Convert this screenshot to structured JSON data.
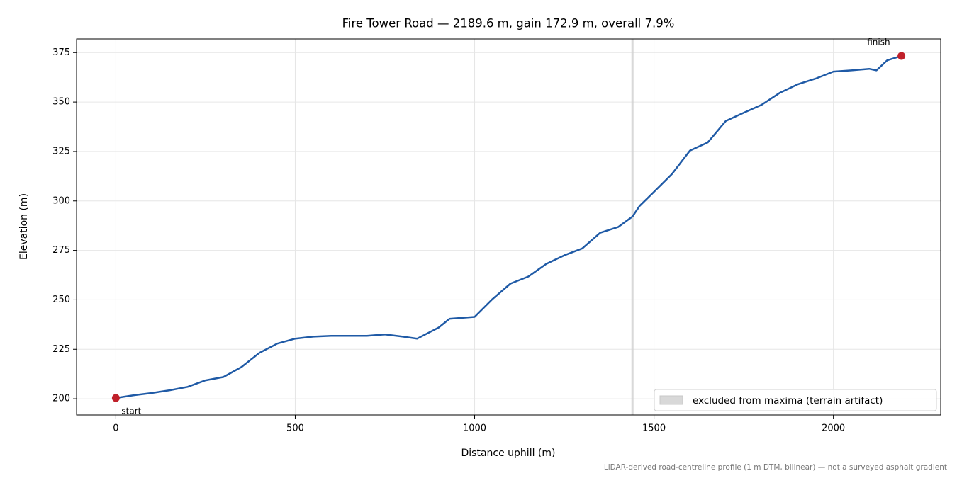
{
  "chart_data": {
    "type": "line",
    "title": "Fire Tower Road — 2189.6 m, gain 172.9 m, overall 7.9%",
    "xlabel": "Distance uphill (m)",
    "ylabel": "Elevation (m)",
    "note": "LiDAR-derived road-centreline profile (1 m DTM, bilinear) — not a surveyed asphalt gradient",
    "x": [
      0,
      50,
      100,
      150,
      200,
      250,
      300,
      350,
      400,
      450,
      500,
      550,
      600,
      700,
      750,
      800,
      840,
      900,
      930,
      1000,
      1050,
      1100,
      1150,
      1200,
      1250,
      1300,
      1350,
      1400,
      1440,
      1460,
      1500,
      1550,
      1600,
      1650,
      1700,
      1750,
      1800,
      1850,
      1900,
      1950,
      2000,
      2050,
      2100,
      2120,
      2150,
      2189.6
    ],
    "values": [
      200.4,
      201.8,
      202.9,
      204.3,
      206,
      209.3,
      211,
      216,
      223.2,
      227.9,
      230.4,
      231.4,
      231.8,
      231.8,
      232.5,
      231.4,
      230.4,
      236,
      240.4,
      241.4,
      250.4,
      258.2,
      261.8,
      268.2,
      272.5,
      276,
      283.9,
      286.8,
      292.1,
      297.5,
      304.6,
      313.6,
      325.4,
      329.6,
      340.4,
      344.6,
      348.6,
      354.6,
      358.9,
      361.8,
      365.4,
      366,
      366.8,
      366,
      371.1,
      373.3
    ],
    "color": "#1f5aa6",
    "endpoint_color": "#c0202a",
    "start_label": "start",
    "finish_label": "finish",
    "excluded": {
      "label": "excluded from maxima (terrain artifact)",
      "range": [
        1437,
        1443
      ],
      "color": "#cfcfcf"
    },
    "xlim": [
      -109.48,
      2299.08
    ],
    "ylim": [
      191.8,
      381.9
    ],
    "xticks": [
      0,
      500,
      1000,
      1500,
      2000
    ],
    "yticks": [
      200,
      225,
      250,
      275,
      300,
      325,
      350,
      375
    ],
    "grid": true,
    "legend": "lower right"
  }
}
